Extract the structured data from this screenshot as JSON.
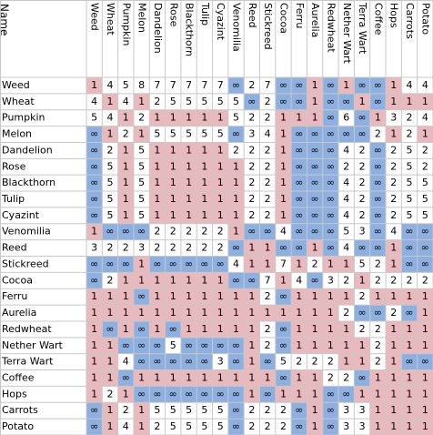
{
  "corner": "Name",
  "columns": [
    "Weed",
    "Wheat",
    "Pumpkin",
    "Melon",
    "Dandelion",
    "Rose",
    "Blackthorn",
    "Tulip",
    "Cyazint",
    "Venomilia",
    "Reed",
    "Stickreed",
    "Cocoa",
    "Ferru",
    "Aurelia",
    "Redwheat",
    "Nether Wart",
    "Terra Wart",
    "Coffee",
    "Hops",
    "Carrots",
    "Potato"
  ],
  "rows": [
    {
      "name": "Weed",
      "cells": [
        1,
        4,
        5,
        8,
        7,
        7,
        7,
        7,
        7,
        "∞",
        2,
        7,
        "∞",
        "∞",
        1,
        "∞",
        1,
        "∞",
        "∞",
        1,
        4,
        4
      ]
    },
    {
      "name": "Wheat",
      "cells": [
        4,
        1,
        4,
        1,
        2,
        5,
        5,
        5,
        5,
        5,
        "∞",
        2,
        "∞",
        "∞",
        1,
        "∞",
        "∞",
        1,
        "∞",
        1,
        1,
        1
      ]
    },
    {
      "name": "Pumpkin",
      "cells": [
        5,
        4,
        1,
        2,
        1,
        1,
        1,
        1,
        1,
        5,
        2,
        2,
        1,
        1,
        1,
        "∞",
        6,
        "∞",
        1,
        3,
        2,
        4
      ]
    },
    {
      "name": "Melon",
      "cells": [
        "∞",
        1,
        2,
        1,
        5,
        5,
        5,
        5,
        5,
        "∞",
        3,
        4,
        1,
        "∞",
        "∞",
        "∞",
        "∞",
        "∞",
        2,
        1,
        2,
        1
      ]
    },
    {
      "name": "Dandelion",
      "cells": [
        "∞",
        2,
        1,
        5,
        1,
        1,
        1,
        1,
        1,
        2,
        2,
        2,
        1,
        "∞",
        "∞",
        "∞",
        4,
        2,
        "∞",
        2,
        5,
        2
      ]
    },
    {
      "name": "Rose",
      "cells": [
        "∞",
        5,
        1,
        5,
        1,
        1,
        1,
        1,
        1,
        1,
        2,
        2,
        1,
        "∞",
        "∞",
        "∞",
        2,
        2,
        "∞",
        2,
        5,
        2
      ]
    },
    {
      "name": "Blackthorn",
      "cells": [
        "∞",
        5,
        1,
        5,
        1,
        1,
        1,
        1,
        1,
        1,
        2,
        2,
        1,
        "∞",
        "∞",
        "∞",
        4,
        2,
        "∞",
        2,
        5,
        5
      ]
    },
    {
      "name": "Tulip",
      "cells": [
        "∞",
        5,
        1,
        5,
        1,
        1,
        1,
        1,
        1,
        1,
        2,
        2,
        1,
        "∞",
        "∞",
        "∞",
        4,
        2,
        "∞",
        2,
        5,
        5
      ]
    },
    {
      "name": "Cyazint",
      "cells": [
        "∞",
        5,
        1,
        5,
        1,
        1,
        1,
        1,
        1,
        1,
        2,
        2,
        1,
        "∞",
        "∞",
        "∞",
        4,
        2,
        "∞",
        2,
        5,
        5
      ]
    },
    {
      "name": "Venomilia",
      "cells": [
        1,
        "∞",
        "∞",
        "∞",
        2,
        2,
        2,
        2,
        2,
        1,
        "∞",
        "∞",
        4,
        "∞",
        "∞",
        "∞",
        5,
        3,
        "∞",
        4,
        "∞",
        "∞"
      ]
    },
    {
      "name": "Reed",
      "cells": [
        3,
        2,
        2,
        3,
        2,
        2,
        2,
        2,
        2,
        "∞",
        1,
        1,
        "∞",
        "∞",
        1,
        "∞",
        4,
        "∞",
        "∞",
        1,
        "∞",
        "∞"
      ]
    },
    {
      "name": "Stickreed",
      "cells": [
        "∞",
        "∞",
        "∞",
        1,
        "∞",
        "∞",
        "∞",
        "∞",
        "∞",
        4,
        1,
        1,
        7,
        1,
        2,
        1,
        1,
        5,
        2,
        1,
        "∞",
        "∞"
      ]
    },
    {
      "name": "Cocoa",
      "cells": [
        "∞",
        2,
        1,
        1,
        1,
        1,
        1,
        1,
        1,
        "∞",
        "∞",
        7,
        1,
        4,
        "∞",
        3,
        2,
        1,
        2,
        2,
        2,
        2
      ]
    },
    {
      "name": "Ferru",
      "cells": [
        1,
        1,
        1,
        "∞",
        1,
        1,
        1,
        1,
        1,
        1,
        1,
        2,
        "∞",
        1,
        1,
        1,
        1,
        2,
        1,
        1,
        1,
        1
      ]
    },
    {
      "name": "Aurelia",
      "cells": [
        1,
        1,
        1,
        1,
        1,
        1,
        1,
        1,
        1,
        1,
        1,
        1,
        1,
        1,
        1,
        1,
        2,
        "∞",
        "∞",
        2,
        "∞",
        1
      ]
    },
    {
      "name": "Redwheat",
      "cells": [
        1,
        "∞",
        1,
        "∞",
        1,
        "∞",
        1,
        1,
        1,
        1,
        1,
        2,
        "∞",
        1,
        1,
        1,
        1,
        2,
        2,
        1,
        1,
        1
      ]
    },
    {
      "name": "Nether Wart",
      "cells": [
        1,
        1,
        "∞",
        "∞",
        "∞",
        5,
        "∞",
        "∞",
        "∞",
        "∞",
        1,
        2,
        "∞",
        1,
        1,
        1,
        1,
        1,
        2,
        1,
        1,
        1
      ]
    },
    {
      "name": "Terra Wart",
      "cells": [
        1,
        1,
        4,
        "∞",
        "∞",
        "∞",
        "∞",
        "∞",
        3,
        "∞",
        1,
        "∞",
        5,
        2,
        2,
        2,
        1,
        1,
        2,
        1,
        "∞",
        "∞"
      ]
    },
    {
      "name": "Coffee",
      "cells": [
        1,
        1,
        "∞",
        1,
        1,
        1,
        1,
        1,
        1,
        1,
        1,
        1,
        "∞",
        1,
        1,
        2,
        2,
        "∞",
        1,
        1,
        1,
        1
      ]
    },
    {
      "name": "Hops",
      "cells": [
        1,
        2,
        1,
        "∞",
        "∞",
        "∞",
        "∞",
        "∞",
        "∞",
        "∞",
        1,
        "∞",
        1,
        1,
        1,
        "∞",
        "∞",
        1,
        1,
        1,
        1,
        1
      ]
    },
    {
      "name": "Carrots",
      "cells": [
        "∞",
        1,
        2,
        1,
        5,
        5,
        5,
        5,
        5,
        "∞",
        2,
        2,
        2,
        "∞",
        1,
        "∞",
        3,
        3,
        1,
        1,
        1,
        1
      ]
    },
    {
      "name": "Potato",
      "cells": [
        "∞",
        1,
        4,
        1,
        2,
        5,
        5,
        5,
        5,
        "∞",
        2,
        2,
        2,
        "∞",
        1,
        "∞",
        3,
        3,
        1,
        1,
        1,
        1
      ]
    }
  ]
}
